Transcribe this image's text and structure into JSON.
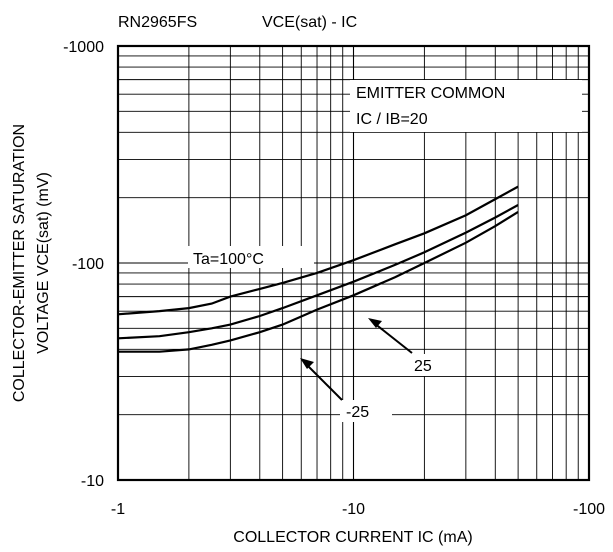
{
  "chart_data": {
    "type": "line",
    "part_number": "RN2965FS",
    "title": "VCE(sat) - IC",
    "xlabel": "COLLECTOR CURRENT   IC (mA)",
    "ylabel_line1": "COLLECTOR-EMITTER SATURATION",
    "ylabel_line2": "VOLTAGE   VCE(sat) (mV)",
    "x_scale": "log",
    "y_scale": "log",
    "xlim": [
      -1,
      -100
    ],
    "ylim": [
      -10,
      -1000
    ],
    "x_ticks": [
      {
        "value": -1,
        "label": "-1"
      },
      {
        "value": -10,
        "label": "-10"
      },
      {
        "value": -100,
        "label": "-100"
      }
    ],
    "y_ticks": [
      {
        "value": -10,
        "label": "-10"
      },
      {
        "value": -100,
        "label": "-100"
      },
      {
        "value": -1000,
        "label": "-1000"
      }
    ],
    "grid": true,
    "annotation_line1": "EMITTER COMMON",
    "annotation_line2": "IC / IB=20",
    "series": [
      {
        "name": "Ta=100°C",
        "x": [
          -1,
          -1.5,
          -2,
          -2.5,
          -3,
          -4,
          -5,
          -7,
          -10,
          -15,
          -20,
          -30,
          -40,
          -50
        ],
        "y": [
          -58,
          -60,
          -62,
          -65,
          -70,
          -76,
          -81,
          -90,
          -103,
          -122,
          -137,
          -166,
          -197,
          -225
        ]
      },
      {
        "name": "25",
        "x": [
          -1,
          -1.5,
          -2,
          -2.5,
          -3,
          -4,
          -5,
          -7,
          -10,
          -15,
          -20,
          -30,
          -40,
          -50
        ],
        "y": [
          -45,
          -46,
          -48,
          -50,
          -52,
          -57,
          -62,
          -71,
          -82,
          -98,
          -112,
          -138,
          -162,
          -185
        ]
      },
      {
        "name": "-25",
        "x": [
          -1,
          -1.5,
          -2,
          -2.5,
          -3,
          -4,
          -5,
          -7,
          -10,
          -15,
          -20,
          -30,
          -40,
          -50
        ],
        "y": [
          -39,
          -39,
          -40,
          -42,
          -44,
          -48,
          -52,
          -61,
          -71,
          -86,
          -100,
          -124,
          -148,
          -172
        ]
      }
    ]
  }
}
